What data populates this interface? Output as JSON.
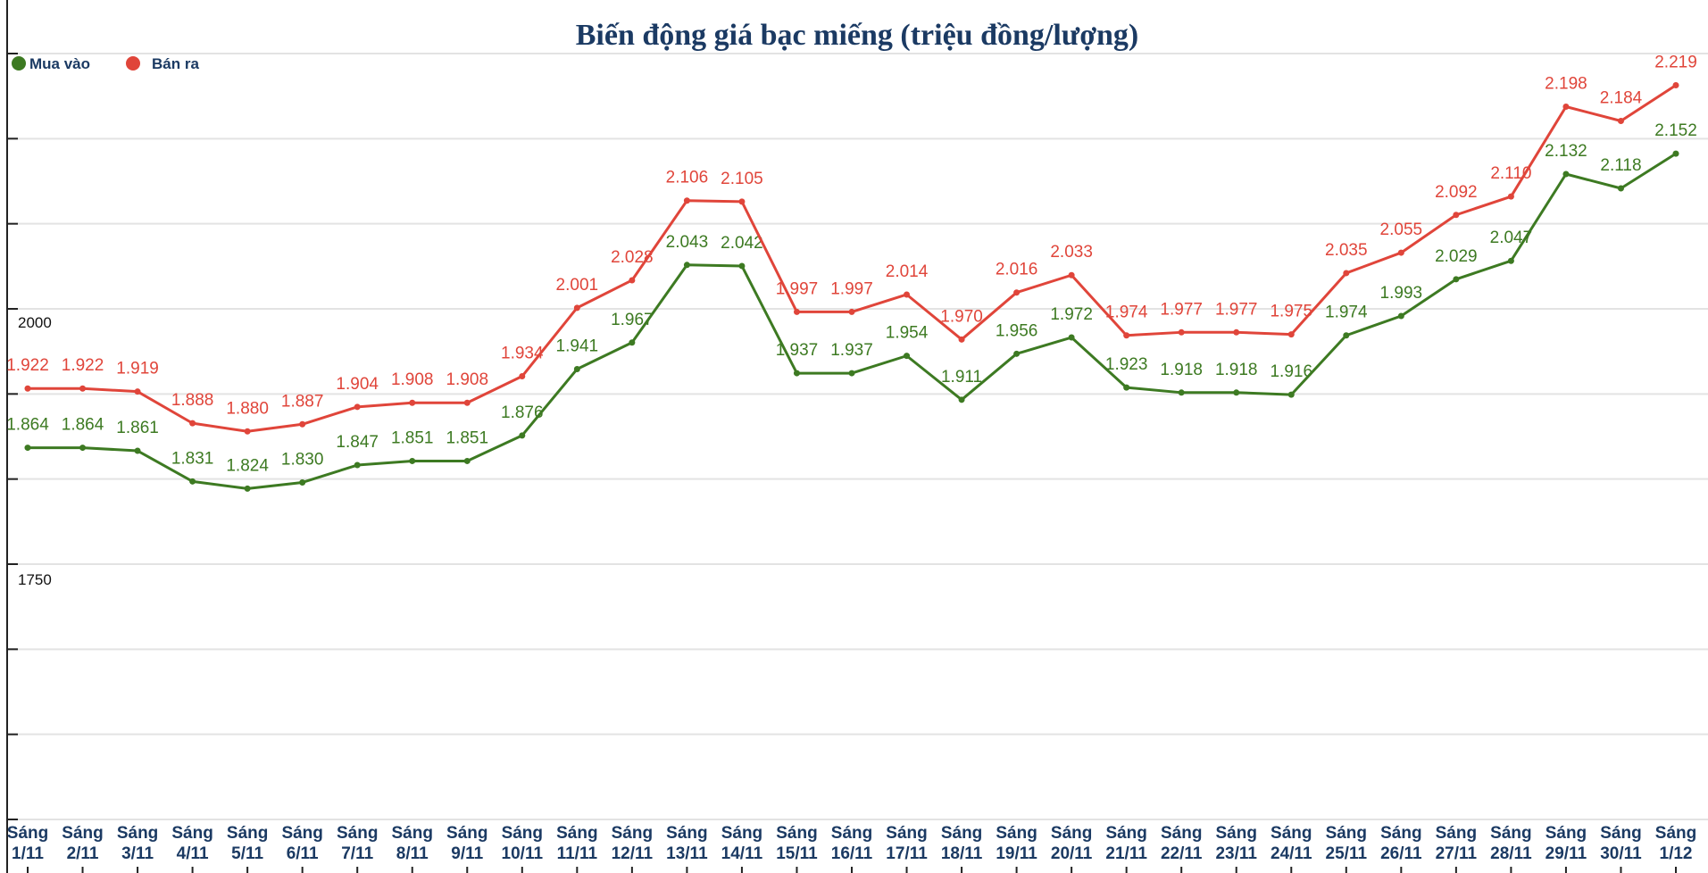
{
  "chart_data": {
    "type": "line",
    "title": "Biến động giá bạc miếng (triệu đồng/lượng)",
    "xlabel": "",
    "ylabel": "",
    "ylim": [
      1500,
      2250
    ],
    "yticks_labeled": [
      "2000",
      "1750"
    ],
    "grid": true,
    "legend_position": "top-left",
    "categories": [
      "Sáng 1/11",
      "Sáng 2/11",
      "Sáng 3/11",
      "Sáng 4/11",
      "Sáng 5/11",
      "Sáng 6/11",
      "Sáng 7/11",
      "Sáng 8/11",
      "Sáng 9/11",
      "Sáng 10/11",
      "Sáng 11/11",
      "Sáng 12/11",
      "Sáng 13/11",
      "Sáng 14/11",
      "Sáng 15/11",
      "Sáng 16/11",
      "Sáng 17/11",
      "Sáng 18/11",
      "Sáng 19/11",
      "Sáng 20/11",
      "Sáng 21/11",
      "Sáng 22/11",
      "Sáng 23/11",
      "Sáng 24/11",
      "Sáng 25/11",
      "Sáng 26/11",
      "Sáng 27/11",
      "Sáng 28/11",
      "Sáng 29/11",
      "Sáng 30/11",
      "Sáng 1/12"
    ],
    "series": [
      {
        "name": "Mua vào",
        "color": "#3d7a22",
        "values": [
          1.864,
          1.864,
          1.861,
          1.831,
          1.824,
          1.83,
          1.847,
          1.851,
          1.851,
          1.876,
          1.941,
          1.967,
          2.043,
          2.042,
          1.937,
          1.937,
          1.954,
          1.911,
          1.956,
          1.972,
          1.923,
          1.918,
          1.918,
          1.916,
          1.974,
          1.993,
          2.029,
          2.047,
          2.132,
          2.118,
          2.152
        ]
      },
      {
        "name": "Bán ra",
        "color": "#e0453a",
        "values": [
          1.922,
          1.922,
          1.919,
          1.888,
          1.88,
          1.887,
          1.904,
          1.908,
          1.908,
          1.934,
          2.001,
          2.028,
          2.106,
          2.105,
          1.997,
          1.997,
          2.014,
          1.97,
          2.016,
          2.033,
          1.974,
          1.977,
          1.977,
          1.975,
          2.035,
          2.055,
          2.092,
          2.11,
          2.198,
          2.184,
          2.219
        ]
      }
    ]
  },
  "colors": {
    "title": "#1b3a63",
    "grid": "#e3e3e3"
  }
}
